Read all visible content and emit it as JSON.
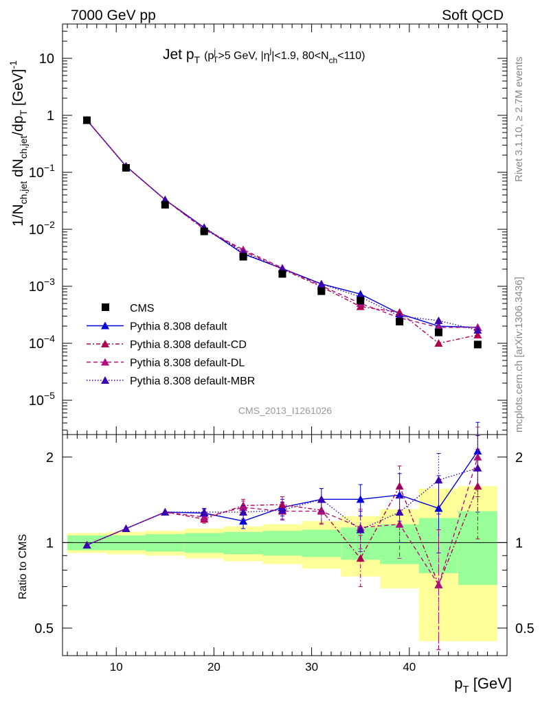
{
  "header": {
    "left": "7000 GeV pp",
    "right": "Soft QCD"
  },
  "side_labels": {
    "rivet": "Rivet 3.1.10, ≥ 2.7M events",
    "mcplots": "mcplots.cern.ch [arXiv:1306.3436]"
  },
  "watermark": "CMS_2013_I1261026",
  "title": {
    "main": "Jet p",
    "sub_T": "T",
    "cuts_a": "(p",
    "cuts_T": "T",
    "cuts_j": "j",
    "cuts_b": ">5 GeV, |η",
    "cuts_j2": "j",
    "cuts_c": "|<1.9, 80<N",
    "cuts_ch": "ch",
    "cuts_d": "<110)"
  },
  "axes": {
    "ylabel_main": "1/N",
    "ylabel_ch": "ch,jet",
    "ylabel_mid": " dN",
    "ylabel_ch2": "ch,jet",
    "ylabel_end": "/dp",
    "ylabel_T": "T",
    "ylabel_unit": " [GeV]",
    "ylabel_exp": "-1",
    "ylabel_ratio": "Ratio to CMS",
    "xlabel": "p",
    "xlabel_T": "T",
    "xlabel_unit": " [GeV]",
    "x_ticks": [
      "10",
      "20",
      "30",
      "40"
    ],
    "ratio_ticks": [
      "0.5",
      "1",
      "2"
    ]
  },
  "legend": [
    {
      "label": "CMS",
      "color": "#000000",
      "marker": "square",
      "dash": ""
    },
    {
      "label": "Pythia 8.308 default",
      "color": "#0000dd",
      "marker": "triangle",
      "dash": ""
    },
    {
      "label": "Pythia 8.308 default-CD",
      "color": "#b0004e",
      "marker": "triangle",
      "dash": "6,3,2,3"
    },
    {
      "label": "Pythia 8.308 default-DL",
      "color": "#b0107e",
      "marker": "triangle",
      "dash": "6,4"
    },
    {
      "label": "Pythia 8.308 default-MBR",
      "color": "#3a00b0",
      "marker": "triangle",
      "dash": "1.5,2.5"
    }
  ],
  "chart_data": {
    "type": "scatter",
    "x_unit": "GeV",
    "xlim": [
      4.5,
      50
    ],
    "ylim": [
      2.5e-06,
      40
    ],
    "yscale": "log",
    "ratio_ylim": [
      0.4,
      2.4
    ],
    "ratio_yscale": "log",
    "x": [
      7,
      11,
      15,
      19,
      23,
      27,
      31,
      35,
      39,
      43,
      47
    ],
    "bin_edges": [
      5,
      9,
      13,
      17,
      21,
      25,
      29,
      33,
      37,
      41,
      45,
      49
    ],
    "band_green_rel": [
      0.06,
      0.06,
      0.07,
      0.08,
      0.09,
      0.1,
      0.11,
      0.13,
      0.16,
      0.22,
      0.29
    ],
    "band_yellow_rel": [
      0.08,
      0.09,
      0.1,
      0.12,
      0.14,
      0.16,
      0.19,
      0.24,
      0.31,
      0.55,
      0.58
    ],
    "series": [
      {
        "name": "CMS",
        "values": [
          0.82,
          0.12,
          0.027,
          0.0092,
          0.0033,
          0.00165,
          0.00082,
          0.00056,
          0.00024,
          0.000155,
          9.5e-05
        ]
      },
      {
        "name": "Pythia 8.308 default",
        "values": [
          0.82,
          0.128,
          0.033,
          0.0107,
          0.0037,
          0.00205,
          0.0011,
          0.00073,
          0.00033,
          0.0002,
          0.00019
        ]
      },
      {
        "name": "Pythia 8.308 default-CD",
        "values": [
          0.82,
          0.128,
          0.033,
          0.01,
          0.0042,
          0.002,
          0.00098,
          0.00044,
          0.00035,
          0.0001,
          0.00014
        ]
      },
      {
        "name": "Pythia 8.308 default-DL",
        "values": [
          0.82,
          0.128,
          0.033,
          0.0102,
          0.0044,
          0.0021,
          0.00102,
          0.0005,
          0.00028,
          0.00019,
          0.00019
        ]
      },
      {
        "name": "Pythia 8.308 default-MBR",
        "values": [
          0.82,
          0.128,
          0.033,
          0.0108,
          0.0039,
          0.002,
          0.0011,
          0.00065,
          0.0003,
          0.00025,
          0.00017
        ]
      }
    ],
    "ratio_series": [
      {
        "name": "Pythia 8.308 default",
        "values": [
          0.98,
          1.12,
          1.28,
          1.27,
          1.19,
          1.33,
          1.42,
          1.42,
          1.47,
          1.32,
          2.1
        ]
      },
      {
        "name": "Pythia 8.308 default-CD",
        "values": [
          0.98,
          1.12,
          1.28,
          1.21,
          1.35,
          1.36,
          1.3,
          0.88,
          1.58,
          0.71,
          1.58
        ]
      },
      {
        "name": "Pythia 8.308 default-DL",
        "values": [
          0.98,
          1.12,
          1.28,
          1.23,
          1.33,
          1.29,
          1.29,
          1.13,
          1.16,
          0.71,
          2.0
        ]
      },
      {
        "name": "Pythia 8.308 default-MBR",
        "values": [
          0.98,
          1.12,
          1.28,
          1.28,
          1.28,
          1.3,
          1.42,
          1.11,
          1.28,
          1.66,
          1.83
        ]
      }
    ],
    "ratio_err": [
      0.005,
      0.01,
      0.02,
      0.04,
      0.07,
      0.09,
      0.13,
      0.18,
      0.28,
      0.4,
      0.55
    ]
  }
}
